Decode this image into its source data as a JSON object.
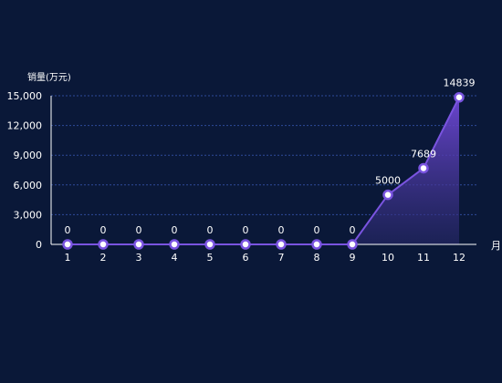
{
  "chart_data": {
    "type": "line",
    "title": "",
    "ylabel": "销量(万元)",
    "xlabel": "月",
    "categories": [
      "1",
      "2",
      "3",
      "4",
      "5",
      "6",
      "7",
      "8",
      "9",
      "10",
      "11",
      "12"
    ],
    "series": [
      {
        "values": [
          0,
          0,
          0,
          0,
          0,
          0,
          0,
          0,
          0,
          5000,
          7689,
          14839
        ],
        "data_labels": [
          "0",
          "0",
          "0",
          "0",
          "0",
          "0",
          "0",
          "0",
          "0",
          "5000",
          "7689",
          "14839"
        ],
        "area_fill": true
      }
    ],
    "ylim": [
      0,
      15000
    ],
    "yticks": [
      0,
      3000,
      6000,
      9000,
      12000,
      15000
    ],
    "ytick_labels": [
      "0",
      "3,000",
      "6,000",
      "9,000",
      "12,000",
      "15,000"
    ],
    "grid": "horizontal-dashed",
    "colors": {
      "background": "#0a1838",
      "line": "#7a54e0",
      "marker_stroke": "#7a54e0",
      "marker_fill": "#ffffff",
      "area_top": "#7048d8",
      "area_bottom": "#2a2a6e",
      "grid": "#2e4a9a",
      "axis": "#ffffff",
      "text": "#ffffff"
    }
  }
}
